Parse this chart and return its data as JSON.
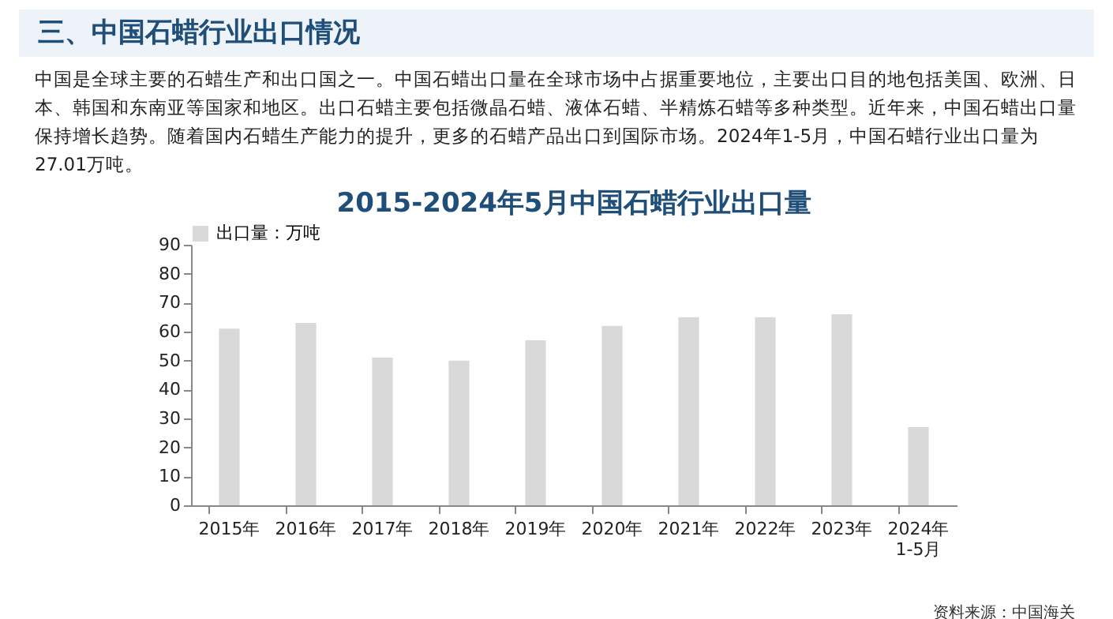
{
  "chart_data": {
    "type": "bar",
    "title": "2015-2024年5月中国石蜡行业出口量",
    "annotations": [
      "三、中国石蜡行业出口情况",
      "中国是全球主要的石蜡生产和出口国之一。中国石蜡出口量在全球市场中占据重要地位，主要出口目的地包括美国、欧洲、日本、韩国和东南亚等国家和地区。出口石蜡主要包括微晶石蜡、液体石蜡、半精炼石蜡等多种类型。近年来，中国石蜡出口量保持增长趋势。随着国内石蜡生产能力的提升，更多的石蜡产品出口到国际市场。2024年1-5月，中国石蜡行业出口量为27.01万吨。",
      "资料来源：中国海关"
    ],
    "categories": [
      "2015年",
      "2016年",
      "2017年",
      "2018年",
      "2019年",
      "2020年",
      "2021年",
      "2022年",
      "2023年",
      "2024年\n1-5月"
    ],
    "series": [
      {
        "name": "出口量：万吨",
        "color": "#d9d9d9",
        "values": [
          61,
          63,
          51,
          50,
          57,
          62,
          65,
          65,
          66,
          27
        ]
      }
    ],
    "ylim": [
      0,
      90
    ],
    "yticks": [
      0,
      10,
      20,
      30,
      40,
      50,
      60,
      70,
      80,
      90
    ],
    "legend": "top"
  }
}
